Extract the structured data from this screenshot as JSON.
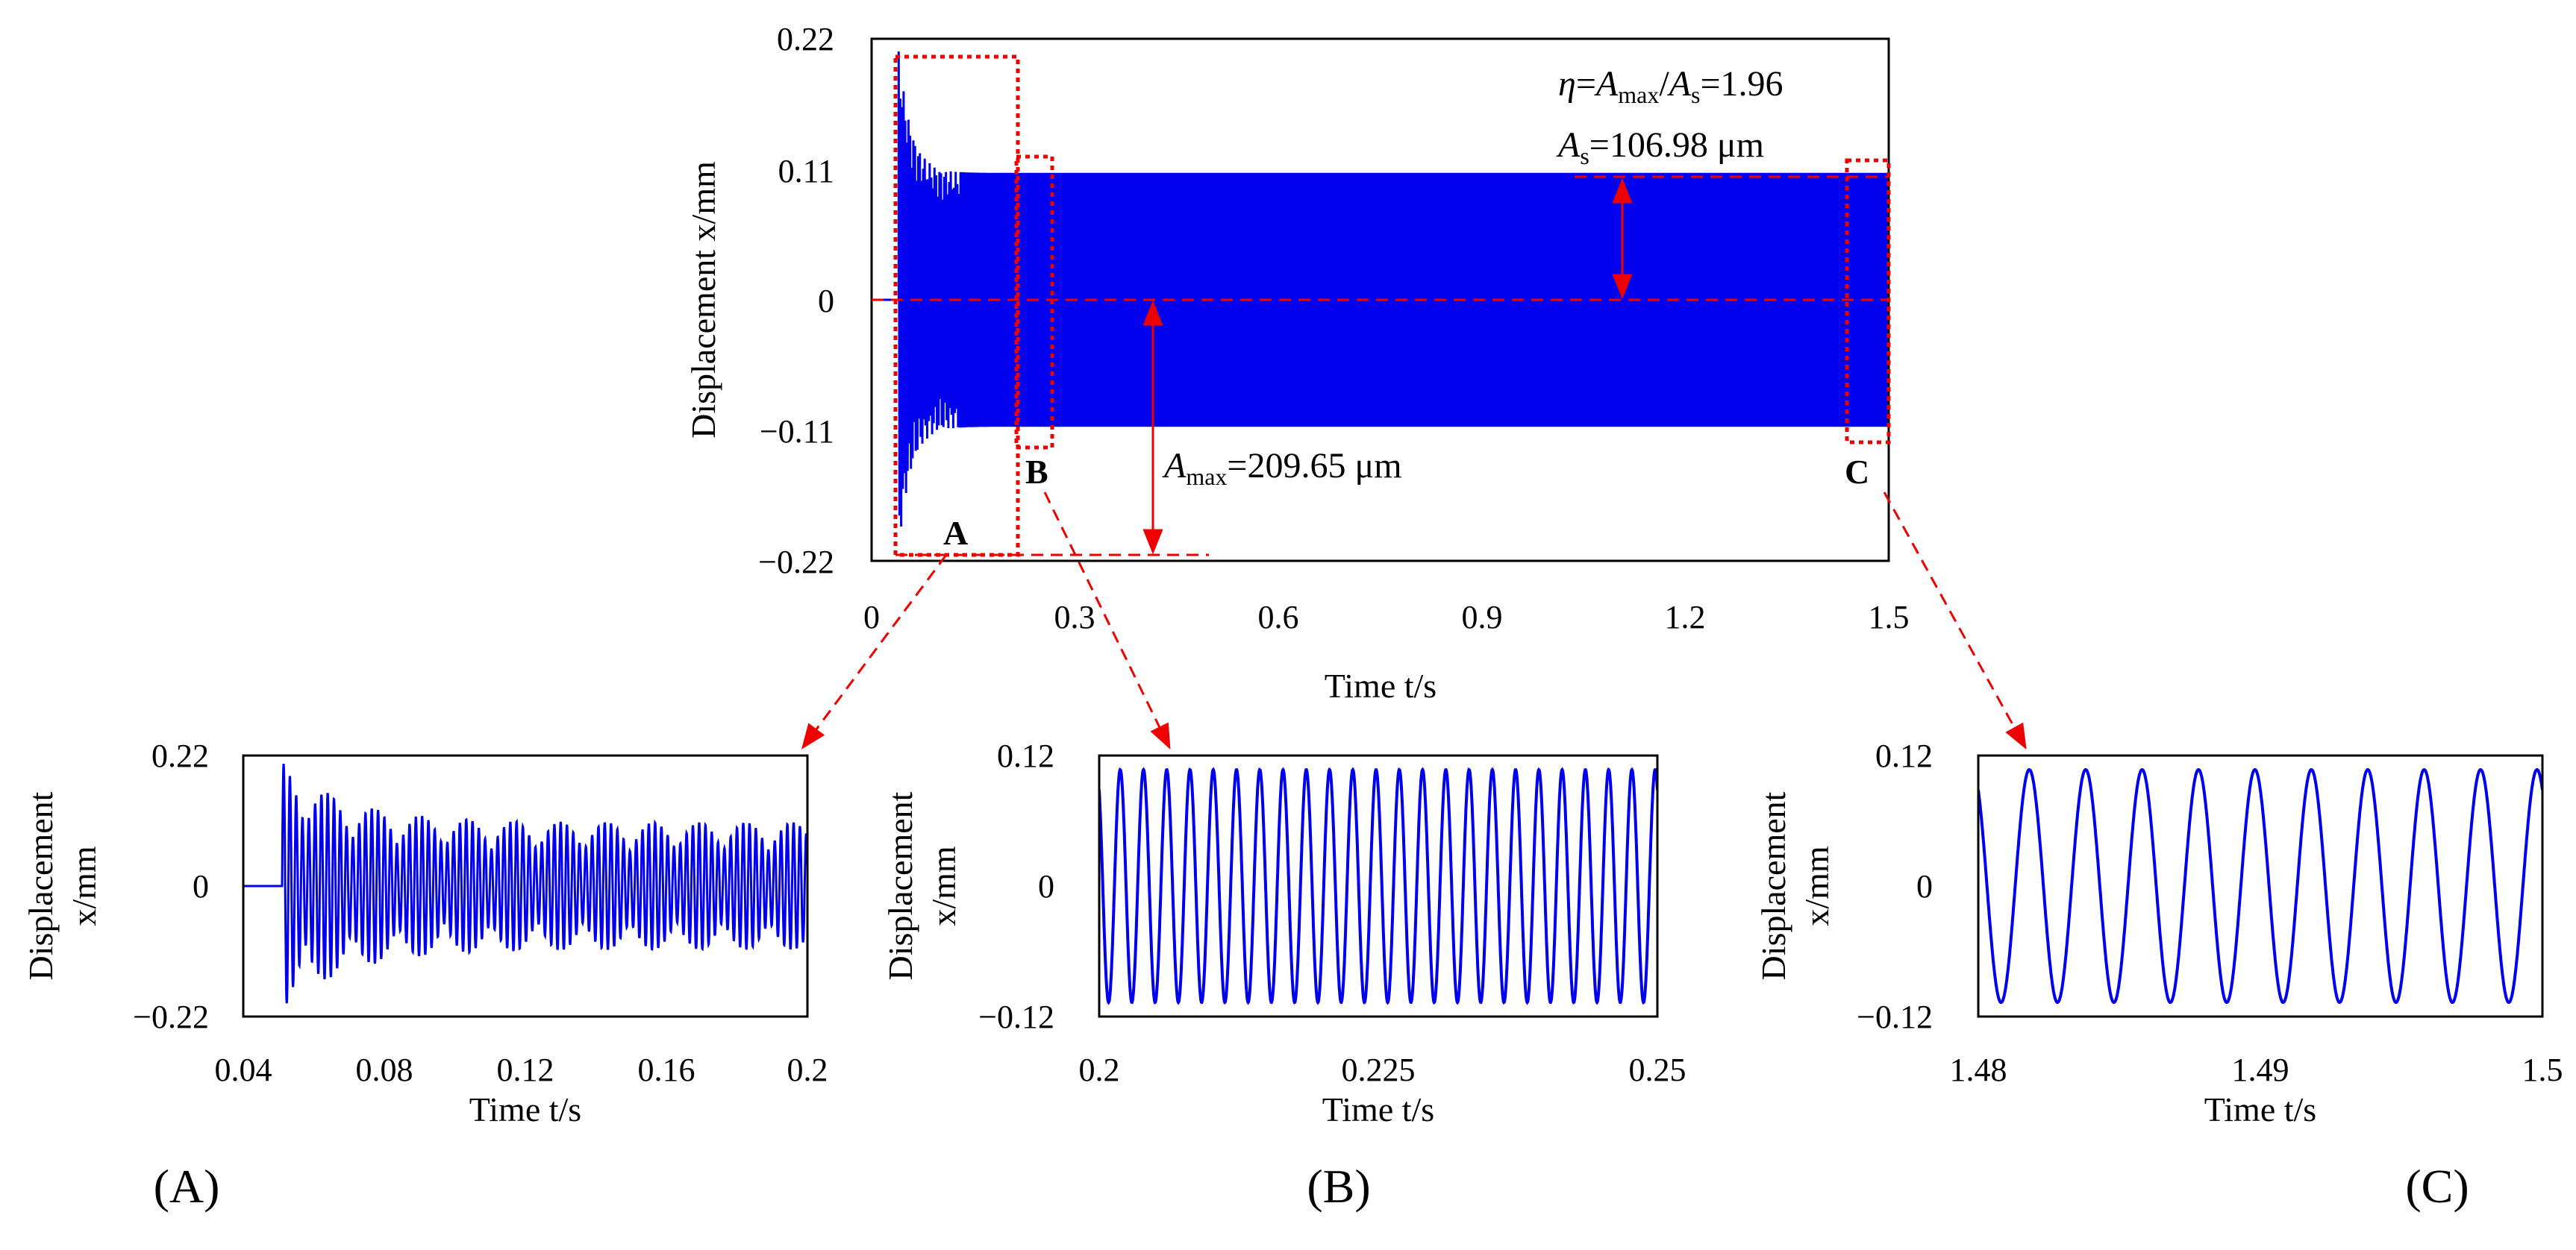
{
  "chart_data": [
    {
      "id": "main",
      "type": "line",
      "title": "",
      "xlabel": "Time t/s",
      "ylabel": "Displacement x/mm",
      "xlim": [
        0,
        1.5
      ],
      "ylim": [
        -0.22,
        0.22
      ],
      "xticks": [
        "0",
        "0.3",
        "0.6",
        "0.9",
        "1.2",
        "1.5"
      ],
      "yticks": [
        "0.22",
        "0.11",
        "0",
        "−0.11",
        "−0.22"
      ],
      "series": [
        {
          "name": "displacement",
          "color": "#0000ee",
          "onset_s": 0.04,
          "steady_amplitude_mm": 0.107,
          "max_amplitude_mm": 0.2097
        }
      ],
      "annotations": {
        "eta": {
          "sym": "η",
          "eq1": "=",
          "A": "A",
          "max": "max",
          "slash": "/",
          "A2": "A",
          "s": "s",
          "value": "=1.96"
        },
        "As": {
          "A": "A",
          "s": "s",
          "value": "=106.98 μm"
        },
        "Amax": {
          "A": "A",
          "max": "max",
          "value": "=209.65 μm"
        }
      },
      "zoom_boxes": [
        {
          "letter": "A",
          "t_range": [
            0.04,
            0.2
          ],
          "x_range": [
            -0.22,
            0.22
          ]
        },
        {
          "letter": "B",
          "t_range": [
            0.2,
            0.25
          ],
          "x_range": [
            -0.12,
            0.12
          ]
        },
        {
          "letter": "C",
          "t_range": [
            1.48,
            1.5
          ],
          "x_range": [
            -0.12,
            0.12
          ]
        }
      ],
      "annotation_color": "#ee0000"
    },
    {
      "id": "A",
      "type": "line",
      "panel_label": "(A)",
      "xlabel": "Time t/s",
      "ylabel_line1": "Displacement",
      "ylabel_line2": "x/mm",
      "xlim": [
        0.04,
        0.2
      ],
      "ylim": [
        -0.22,
        0.22
      ],
      "xticks": [
        "0.04",
        "0.08",
        "0.12",
        "0.16",
        "0.2"
      ],
      "yticks": [
        "0.22",
        "0",
        "−0.22"
      ]
    },
    {
      "id": "B",
      "type": "line",
      "panel_label": "(B)",
      "xlabel": "Time t/s",
      "ylabel_line1": "Displacement",
      "ylabel_line2": "x/mm",
      "xlim": [
        0.2,
        0.25
      ],
      "ylim": [
        -0.12,
        0.12
      ],
      "xticks": [
        "0.2",
        "0.225",
        "0.25"
      ],
      "yticks": [
        "0.12",
        "0",
        "−0.12"
      ],
      "cycles": 24
    },
    {
      "id": "C",
      "type": "line",
      "panel_label": "(C)",
      "xlabel": "Time t/s",
      "ylabel_line1": "Displacement",
      "ylabel_line2": "x/mm",
      "xlim": [
        1.48,
        1.5
      ],
      "ylim": [
        -0.12,
        0.12
      ],
      "xticks": [
        "1.48",
        "1.49",
        "1.5"
      ],
      "yticks": [
        "0.12",
        "0",
        "−0.12"
      ],
      "cycles": 10
    }
  ]
}
